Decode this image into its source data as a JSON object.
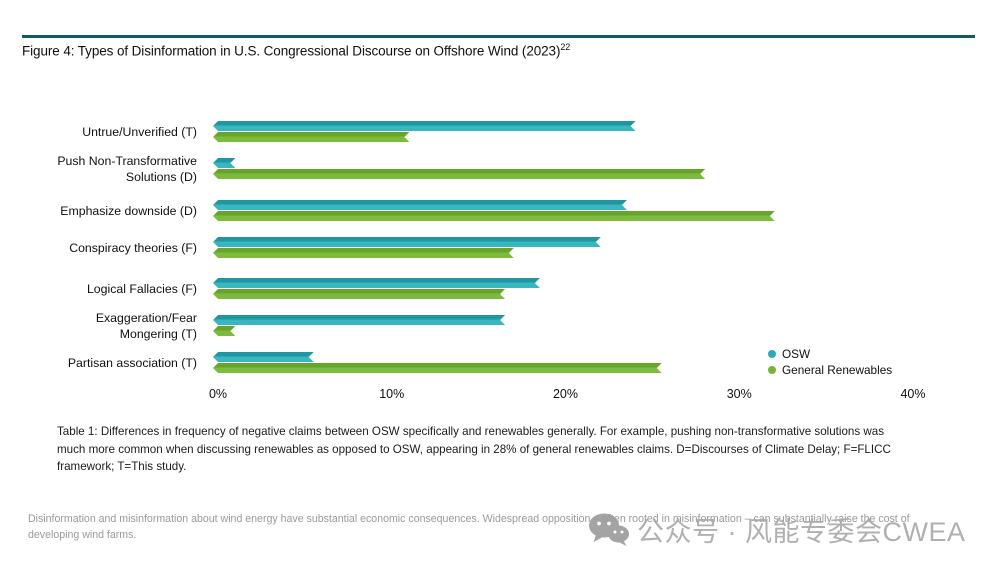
{
  "figure": {
    "title": "Figure 4: Types of Disinformation in U.S. Congressional Discourse on Offshore Wind (2023)",
    "title_superscript": "22"
  },
  "chart_data": {
    "type": "bar",
    "orientation": "horizontal",
    "title": "Figure 4: Types of Disinformation in U.S. Congressional Discourse on Offshore Wind (2023)",
    "categories": [
      "Untrue/Unverified (T)",
      "Push Non-Transformative\nSolutions (D)",
      "Emphasize downside (D)",
      "Conspiracy theories (F)",
      "Logical Fallacies (F)",
      "Exaggeration/Fear\nMongering (T)",
      "Partisan association (T)"
    ],
    "series": [
      {
        "name": "OSW",
        "color": "#2fa9b3",
        "color_dark": "#2196a1",
        "color_light": "#39b7c0",
        "values": [
          24,
          1,
          23.5,
          22,
          18.5,
          16.5,
          5.5
        ]
      },
      {
        "name": "General Renewables",
        "color": "#77b43b",
        "color_dark": "#67a42c",
        "color_light": "#7cbb3e",
        "values": [
          11,
          28,
          32,
          17,
          16.5,
          1,
          25.5
        ]
      }
    ],
    "x_ticks": [
      "0%",
      "10%",
      "20%",
      "30%",
      "40%"
    ],
    "xlim": [
      0,
      40
    ],
    "unit": "%",
    "grid": false,
    "legend_position": "right-bottom"
  },
  "caption": "Table 1: Differences in frequency of negative claims between OSW specifically and renewables generally. For example, pushing non-transformative solutions was much more common when discussing renewables as opposed to OSW, appearing in 28% of general renewables claims. D=Discourses of Climate Delay; F=FLICC framework; T=This study.",
  "footnote": "Disinformation and misinformation about wind energy have substantial economic consequences. Widespread opposition – often rooted in misinformation – can substantially raise the cost of developing wind farms.",
  "watermark": {
    "icon": "wechat-icon",
    "text": "公众号 · 风能专委会CWEA"
  }
}
